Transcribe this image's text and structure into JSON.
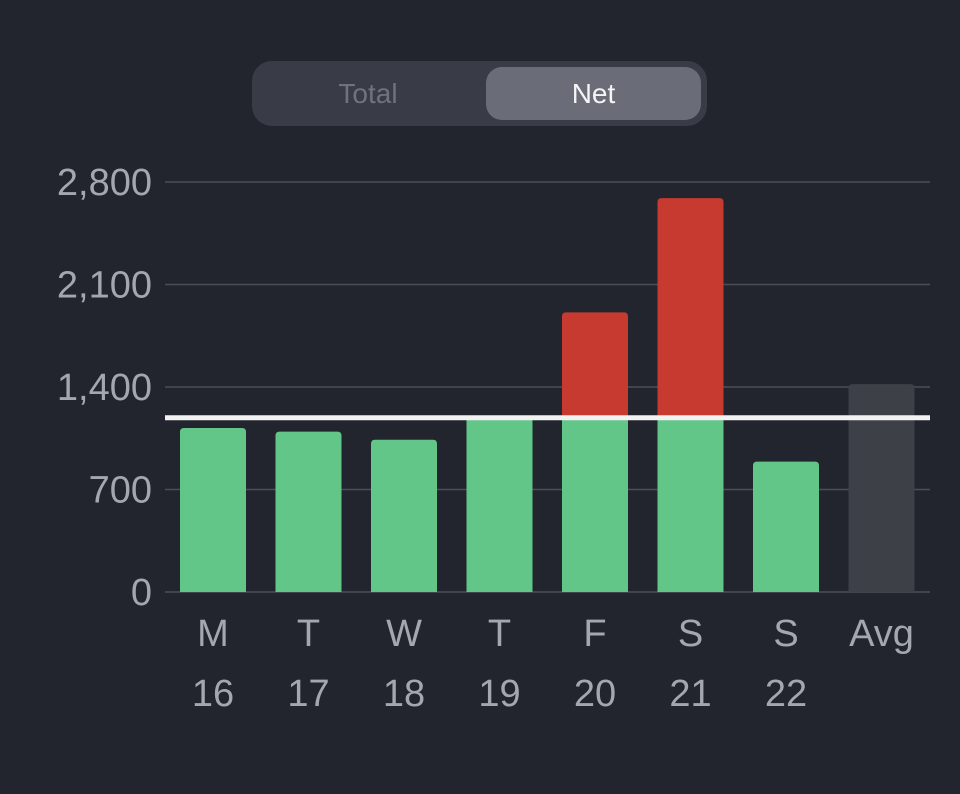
{
  "toggle": {
    "total_label": "Total",
    "net_label": "Net",
    "selected": "Net"
  },
  "colors": {
    "background": "#22252e",
    "under_goal": "#62c689",
    "over_goal": "#c63a30",
    "average": "#3e4048",
    "goal_line": "#f2f2f2",
    "gridline": "#4b4e57",
    "label": "#a4a7ae"
  },
  "chart_data": {
    "type": "bar",
    "title": "",
    "xlabel": "",
    "ylabel": "",
    "ylim": [
      0,
      2800
    ],
    "yticks": [
      0,
      700,
      1400,
      2100,
      2800
    ],
    "ytick_labels": [
      "0",
      "700",
      "1,400",
      "2,100",
      "2,800"
    ],
    "goal": 1190,
    "categories": [
      {
        "day": "M",
        "date": "16"
      },
      {
        "day": "T",
        "date": "17"
      },
      {
        "day": "W",
        "date": "18"
      },
      {
        "day": "T",
        "date": "19"
      },
      {
        "day": "F",
        "date": "20"
      },
      {
        "day": "S",
        "date": "21"
      },
      {
        "day": "S",
        "date": "22"
      },
      {
        "day": "Avg",
        "date": ""
      }
    ],
    "values": [
      1120,
      1095,
      1040,
      1200,
      1910,
      2690,
      890,
      1420
    ]
  }
}
